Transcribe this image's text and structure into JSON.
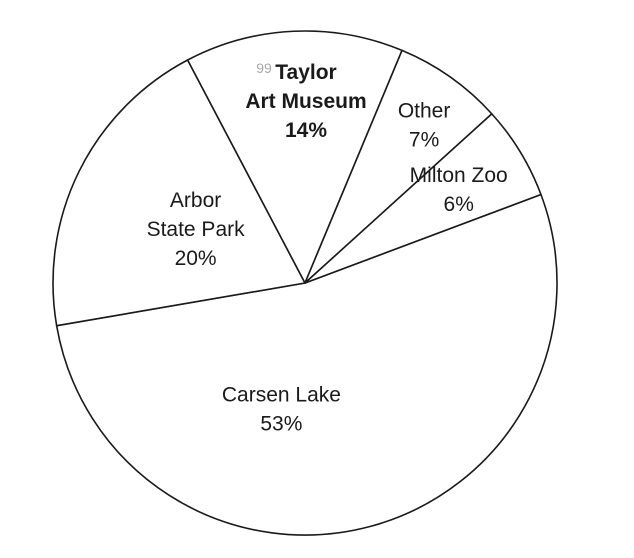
{
  "chart_data": {
    "type": "pie",
    "title": "",
    "slices": [
      {
        "label": [
          "Carsen Lake"
        ],
        "value": 53,
        "value_label": "53%",
        "bold": false
      },
      {
        "label": [
          "Arbor",
          "State Park"
        ],
        "value": 20,
        "value_label": "20%",
        "bold": false
      },
      {
        "label": [
          "Taylor",
          "Art Museum"
        ],
        "value": 14,
        "value_label": "14%",
        "bold": true,
        "prefix_mark": "99"
      },
      {
        "label": [
          "Other"
        ],
        "value": 7,
        "value_label": "7%",
        "bold": false
      },
      {
        "label": [
          "Milton Zoo"
        ],
        "value": 6,
        "value_label": "6%",
        "bold": false
      }
    ],
    "legend": "none",
    "grid": false
  }
}
